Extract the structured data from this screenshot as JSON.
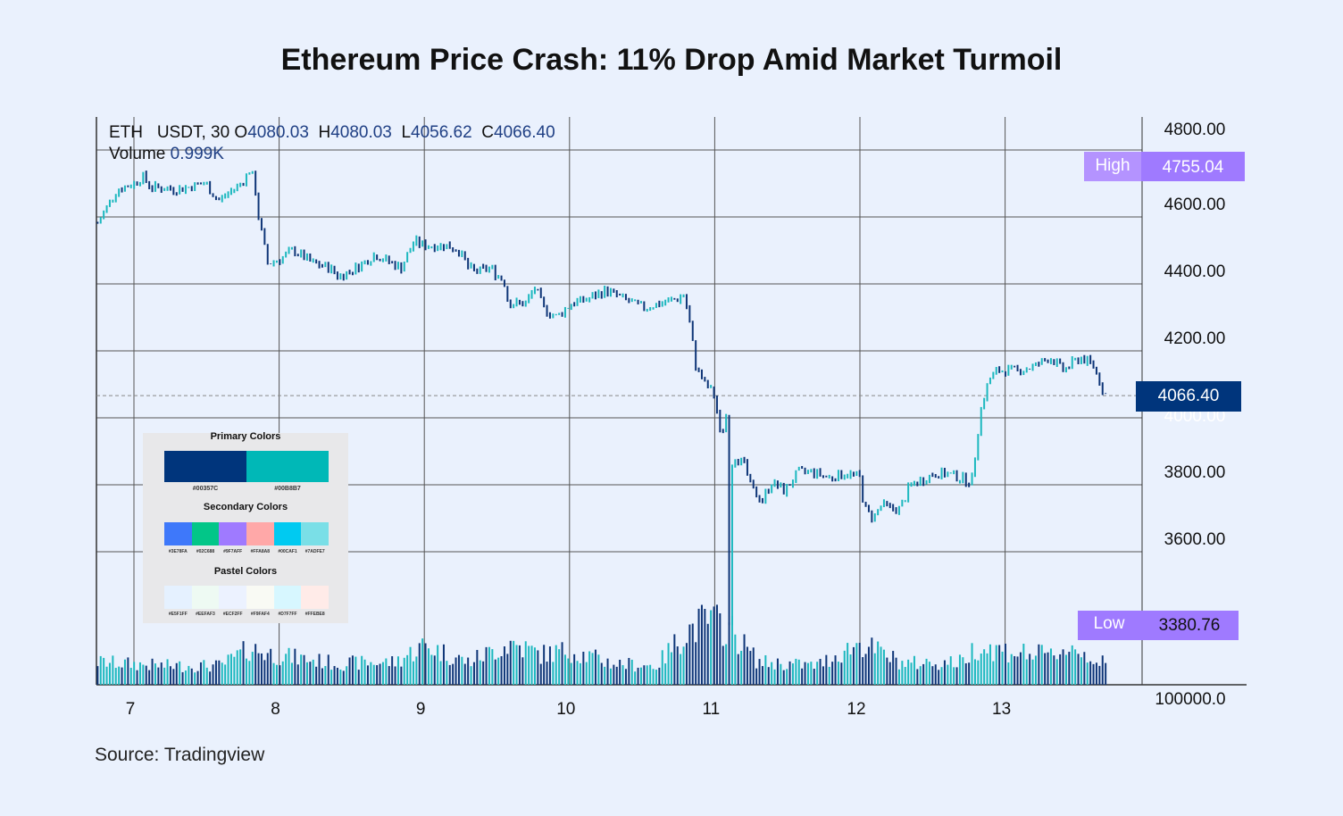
{
  "title": "Ethereum Price Crash: 11% Drop Amid Market Turmoil",
  "source": "Source: Tradingview",
  "header": {
    "symbol": "ETH   USDT, 30 ",
    "open_label": "O",
    "open": "4080.03",
    "high_label": "H",
    "high": "4080.03",
    "low_label": "L",
    "low": "4056.62",
    "close_label": "C",
    "close": "4066.40",
    "volume_label": "Volume ",
    "volume": "0.999K"
  },
  "colors": {
    "up": "#1cb8bf",
    "down": "#0e3577",
    "badge": "#00357c",
    "high_low": "#9f7aff",
    "high_low_tag": "#b493ff",
    "background": "#eaf1fd"
  },
  "badges": {
    "high_label": "High",
    "high_value": "4755.04",
    "low_label": "Low",
    "low_value": "3380.76",
    "last_value": "4066.40"
  },
  "palette_panel": {
    "primary_title": "Primary Colors",
    "primary": [
      {
        "hex": "#00357C"
      },
      {
        "hex": "#00B8B7"
      }
    ],
    "secondary_title": "Secondary Colors",
    "secondary": [
      {
        "hex": "#3E78FA"
      },
      {
        "hex": "#02C688"
      },
      {
        "hex": "#9F7AFF"
      },
      {
        "hex": "#FFA8A8"
      },
      {
        "hex": "#00CAF1"
      },
      {
        "hex": "#7ADFE7"
      }
    ],
    "pastel_title": "Pastel Colors",
    "pastel": [
      {
        "hex": "#E5F1FF"
      },
      {
        "hex": "#EEFAF3"
      },
      {
        "hex": "#ECF2FF"
      },
      {
        "hex": "#F9FAF4"
      },
      {
        "hex": "#D7F7FF"
      },
      {
        "hex": "#FFEBE8"
      }
    ]
  },
  "chart_data": {
    "type": "candlestick",
    "title": "Ethereum Price Crash: 11% Drop Amid Market Turmoil",
    "xlabel": "",
    "ylabel": "",
    "x_ticks": [
      "7",
      "8",
      "9",
      "10",
      "11",
      "12",
      "13"
    ],
    "y_ticks": [
      "4800.00",
      "4600.00",
      "4400.00",
      "4200.00",
      "4000.00",
      "3800.00",
      "3600.00"
    ],
    "volume_axis_label": "100000.0",
    "ylim": [
      3380,
      4800
    ],
    "xlim": [
      6.75,
      13.72
    ],
    "grid": true,
    "last_price": 4066.4,
    "high": 4755.04,
    "low": {
      "day": 11.11,
      "price": 3380.76
    },
    "close_path": [
      [
        6.75,
        4581
      ],
      [
        6.82,
        4635
      ],
      [
        6.88,
        4680
      ],
      [
        7.0,
        4701
      ],
      [
        7.06,
        4720
      ],
      [
        7.12,
        4688
      ],
      [
        7.31,
        4683
      ],
      [
        7.49,
        4701
      ],
      [
        7.58,
        4648
      ],
      [
        7.74,
        4701
      ],
      [
        7.8,
        4741
      ],
      [
        7.83,
        4701
      ],
      [
        7.86,
        4595
      ],
      [
        7.89,
        4528
      ],
      [
        7.92,
        4461
      ],
      [
        8.01,
        4475
      ],
      [
        8.1,
        4501
      ],
      [
        8.23,
        4461
      ],
      [
        8.35,
        4448
      ],
      [
        8.41,
        4421
      ],
      [
        8.53,
        4448
      ],
      [
        8.66,
        4488
      ],
      [
        8.78,
        4461
      ],
      [
        8.84,
        4448
      ],
      [
        8.93,
        4528
      ],
      [
        8.99,
        4515
      ],
      [
        9.15,
        4515
      ],
      [
        9.24,
        4501
      ],
      [
        9.3,
        4448
      ],
      [
        9.36,
        4435
      ],
      [
        9.45,
        4448
      ],
      [
        9.55,
        4408
      ],
      [
        9.58,
        4341
      ],
      [
        9.7,
        4341
      ],
      [
        9.76,
        4389
      ],
      [
        9.82,
        4328
      ],
      [
        9.91,
        4301
      ],
      [
        10.01,
        4341
      ],
      [
        10.13,
        4355
      ],
      [
        10.25,
        4381
      ],
      [
        10.37,
        4355
      ],
      [
        10.5,
        4328
      ],
      [
        10.62,
        4341
      ],
      [
        10.74,
        4355
      ],
      [
        10.79,
        4368
      ],
      [
        10.83,
        4275
      ],
      [
        10.87,
        4155
      ],
      [
        10.93,
        4101
      ],
      [
        10.99,
        4075
      ],
      [
        11.02,
        4008
      ],
      [
        11.04,
        3941
      ],
      [
        11.08,
        4008
      ],
      [
        11.1,
        3835
      ],
      [
        11.14,
        3888
      ],
      [
        11.2,
        3861
      ],
      [
        11.26,
        3781
      ],
      [
        11.33,
        3755
      ],
      [
        11.39,
        3808
      ],
      [
        11.48,
        3781
      ],
      [
        11.57,
        3835
      ],
      [
        11.66,
        3840
      ],
      [
        11.79,
        3821
      ],
      [
        11.91,
        3835
      ],
      [
        12.0,
        3821
      ],
      [
        12.03,
        3728
      ],
      [
        12.09,
        3701
      ],
      [
        12.15,
        3741
      ],
      [
        12.21,
        3728
      ],
      [
        12.28,
        3728
      ],
      [
        12.34,
        3795
      ],
      [
        12.4,
        3808
      ],
      [
        12.52,
        3835
      ],
      [
        12.64,
        3829
      ],
      [
        12.77,
        3808
      ],
      [
        12.83,
        4021
      ],
      [
        12.89,
        4115
      ],
      [
        12.95,
        4141
      ],
      [
        13.09,
        4141
      ],
      [
        13.21,
        4155
      ],
      [
        13.31,
        4181
      ],
      [
        13.4,
        4141
      ],
      [
        13.52,
        4181
      ],
      [
        13.61,
        4155
      ],
      [
        13.68,
        4075
      ],
      [
        13.71,
        4066.4
      ]
    ],
    "volume_path": [
      [
        6.75,
        30
      ],
      [
        7.2,
        25
      ],
      [
        7.6,
        25
      ],
      [
        7.8,
        48
      ],
      [
        7.95,
        40
      ],
      [
        8.4,
        28
      ],
      [
        8.8,
        30
      ],
      [
        9.0,
        52
      ],
      [
        9.3,
        30
      ],
      [
        9.6,
        55
      ],
      [
        9.8,
        40
      ],
      [
        10.0,
        45
      ],
      [
        10.3,
        28
      ],
      [
        10.6,
        25
      ],
      [
        10.8,
        70
      ],
      [
        10.95,
        85
      ],
      [
        11.1,
        75
      ],
      [
        11.3,
        30
      ],
      [
        11.7,
        25
      ],
      [
        12.0,
        55
      ],
      [
        12.3,
        28
      ],
      [
        12.7,
        30
      ],
      [
        12.8,
        50
      ],
      [
        13.0,
        45
      ],
      [
        13.3,
        38
      ],
      [
        13.45,
        50
      ],
      [
        13.71,
        25
      ]
    ],
    "volume_ylim": [
      0,
      100
    ]
  }
}
